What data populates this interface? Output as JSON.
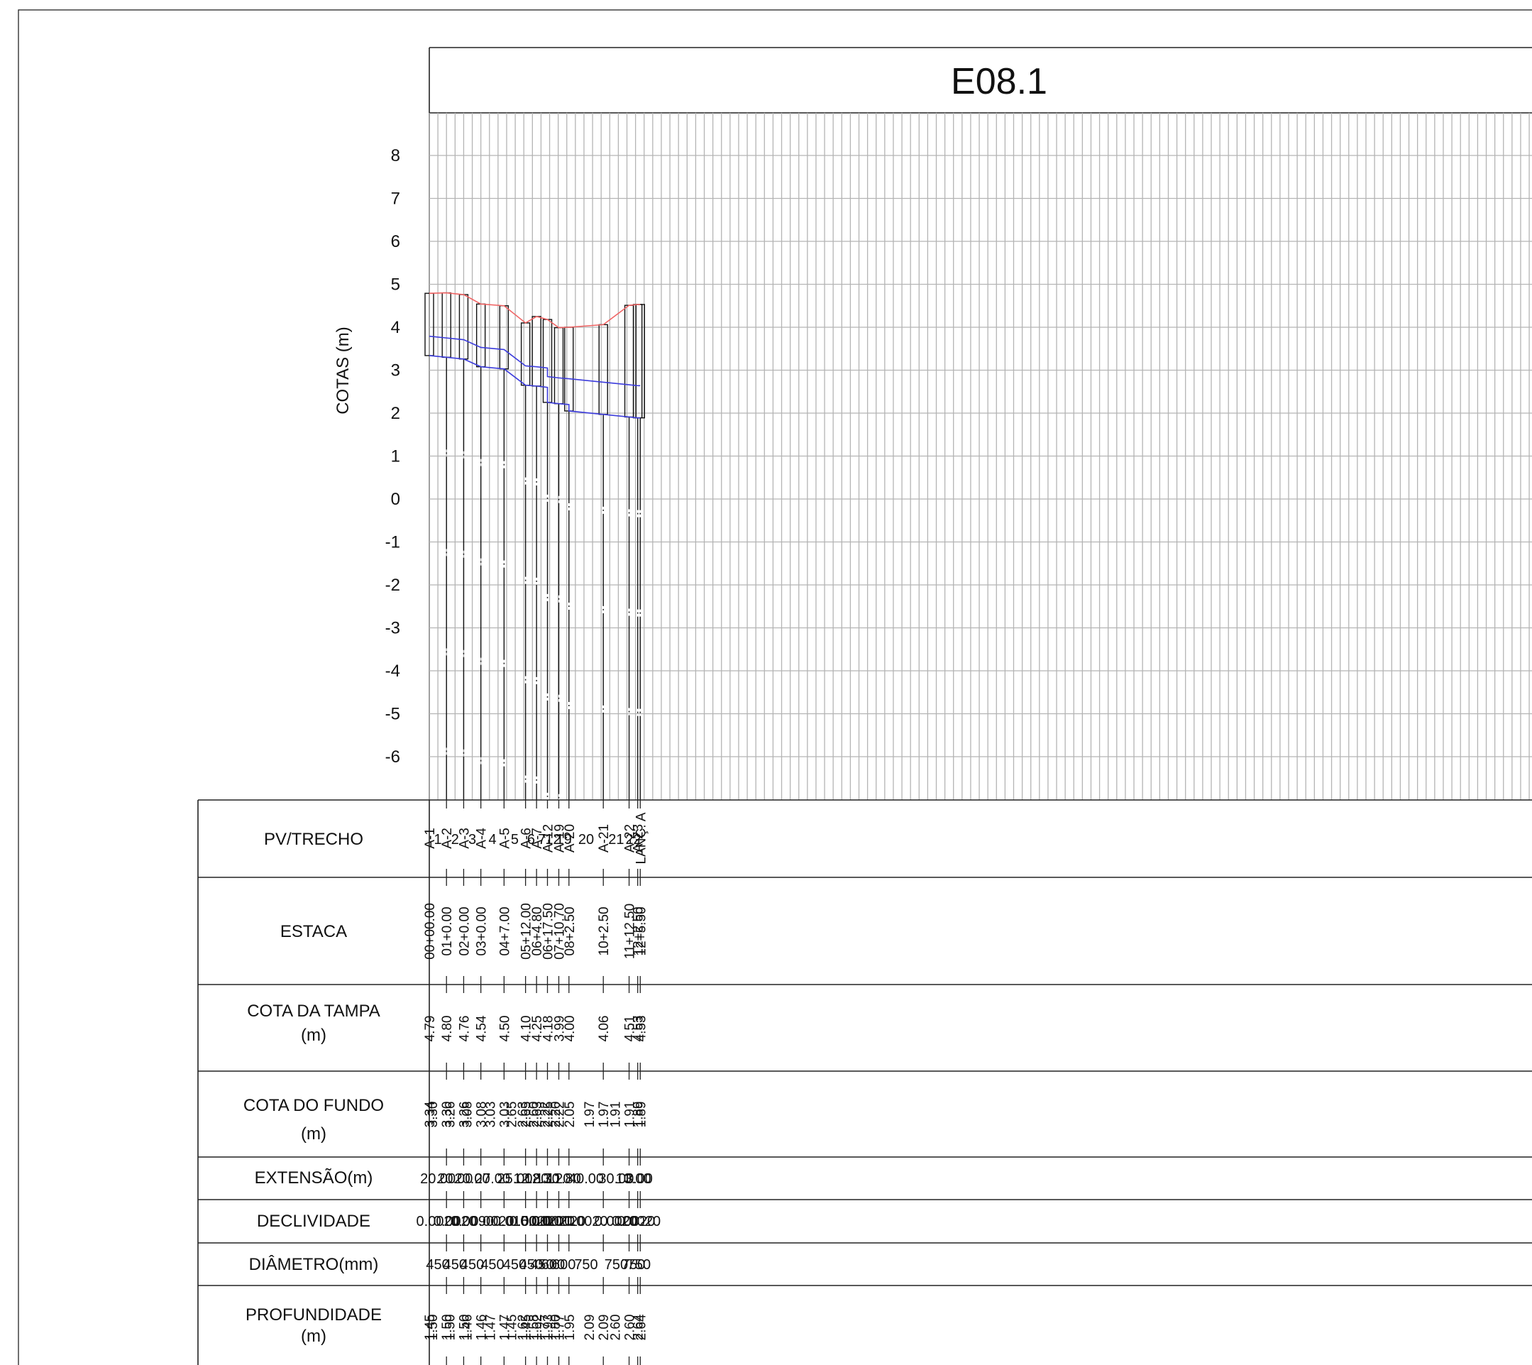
{
  "title": "E08.1",
  "y_axis_label": "COTAS (m)",
  "y_ticks": [
    "8",
    "7",
    "6",
    "5",
    "4",
    "3",
    "2",
    "1",
    "0",
    "-1",
    "-2",
    "-3",
    "-4",
    "-5",
    "-6"
  ],
  "row_labels": {
    "pv_trecho": "PV/TRECHO",
    "estaca": "ESTACA",
    "cota_tampa": [
      "COTA DA TAMPA",
      "(m)"
    ],
    "cota_fundo": [
      "COTA DO FUNDO",
      "(m)"
    ],
    "extensao": "EXTENSÃO(m)",
    "declividade": "DECLIVIDADE",
    "diametro": "DIÂMETRO(mm)",
    "profundidade": [
      "PROFUNDIDADE",
      "(m)"
    ]
  },
  "colors": {
    "terrain": "#f06464",
    "pipe": "#3c3cdc",
    "grid": "#b4b4b4"
  },
  "chart_data": {
    "type": "line",
    "ylabel": "COTAS (m)",
    "ylim": [
      -6,
      8
    ],
    "grid": true,
    "stations": [
      {
        "pv": "A-1",
        "estaca": "00+00.00",
        "chainage": 0,
        "tampa": [
          "4.79"
        ],
        "fundo": [
          "3.34"
        ],
        "prof": [
          "1.45"
        ]
      },
      {
        "pv": "A-2",
        "estaca": "01+0.00",
        "chainage": 20,
        "tampa": [
          "4.80"
        ],
        "fundo": [
          "3.30",
          "3.30"
        ],
        "prof": [
          "1.50",
          "1.50"
        ]
      },
      {
        "pv": "A-3",
        "estaca": "02+0.00",
        "chainage": 40,
        "tampa": [
          "4.76"
        ],
        "fundo": [
          "3.26",
          "3.26"
        ],
        "prof": [
          "1.50",
          "1.50"
        ]
      },
      {
        "pv": "A-4",
        "estaca": "03+0.00",
        "chainage": 60,
        "tampa": [
          "4.54"
        ],
        "fundo": [
          "3.08",
          "3.08"
        ],
        "prof": [
          "1.46",
          "1.46"
        ]
      },
      {
        "pv": "A-5",
        "estaca": "04+7.00",
        "chainage": 87,
        "tampa": [
          "4.50"
        ],
        "fundo": [
          "3.03",
          "3.03"
        ],
        "prof": [
          "1.47",
          "1.47"
        ]
      },
      {
        "pv": "A-6",
        "estaca": "05+12.00",
        "chainage": 112,
        "tampa": [
          "4.10"
        ],
        "fundo": [
          "2.65",
          "2.65"
        ],
        "prof": [
          "1.45",
          "1.45"
        ]
      },
      {
        "pv": "A-7",
        "estaca": "06+4.80",
        "chainage": 124.8,
        "tampa": [
          "4.25"
        ],
        "fundo": [
          "2.63",
          "2.63"
        ],
        "prof": [
          "1.62",
          "1.62"
        ]
      },
      {
        "pv": "A-12",
        "estaca": "06+17.50",
        "chainage": 137.5,
        "tampa": [
          "4.18"
        ],
        "fundo": [
          "2.60",
          "2.25"
        ],
        "prof": [
          "1.58",
          "1.93"
        ]
      },
      {
        "pv": "A-19",
        "estaca": "07+10.70",
        "chainage": 150.7,
        "tampa": [
          "3.99"
        ],
        "fundo": [
          "2.22",
          "2.22"
        ],
        "prof": [
          "1.77",
          "1.77"
        ]
      },
      {
        "pv": "A-20",
        "estaca": "08+2.50",
        "chainage": 162.5,
        "tampa": [
          "4.00"
        ],
        "fundo": [
          "2.20",
          "2.05"
        ],
        "prof": [
          "1.80",
          "1.95"
        ]
      },
      {
        "pv": "A-21",
        "estaca": "10+2.50",
        "chainage": 202.5,
        "tampa": [
          "4.06"
        ],
        "fundo": [
          "1.97",
          "1.97"
        ],
        "prof": [
          "2.09",
          "2.09"
        ]
      },
      {
        "pv": "A-22",
        "estaca": "11+12.50",
        "chainage": 232.5,
        "tampa": [
          "4.51"
        ],
        "fundo": [
          "1.91",
          "1.91"
        ],
        "prof": [
          "2.60",
          "2.60"
        ]
      },
      {
        "pv": "A-23",
        "estaca": "12+2.50",
        "chainage": 242.5,
        "tampa": [
          "4.53"
        ],
        "fundo": [
          "1.89"
        ],
        "prof": [
          "2.64"
        ]
      },
      {
        "pv": "LANÇ. A",
        "estaca": "12+5.50",
        "chainage": 245.5,
        "tampa": [
          "4.53"
        ],
        "fundo": [
          "1.89"
        ],
        "prof": [
          "2.64"
        ]
      }
    ],
    "segments": [
      {
        "trecho": "1",
        "extensao": "20.00",
        "declividade": "0.0020",
        "diametro": "450"
      },
      {
        "trecho": "2",
        "extensao": "20.00",
        "declividade": "0.0020",
        "diametro": "450"
      },
      {
        "trecho": "3",
        "extensao": "20.00",
        "declividade": "0.0090",
        "diametro": "450"
      },
      {
        "trecho": "4",
        "extensao": "27.00",
        "declividade": "0.0020",
        "diametro": "450"
      },
      {
        "trecho": "5",
        "extensao": "25.00",
        "declividade": "0.0150",
        "diametro": "450"
      },
      {
        "trecho": "6",
        "extensao": "12.80",
        "declividade": "0.0020",
        "diametro": "450"
      },
      {
        "trecho": "7",
        "extensao": "12.70",
        "declividade": "0.0020",
        "diametro": "450"
      },
      {
        "trecho": "12",
        "extensao": "13.20",
        "declividade": "0.0020",
        "diametro": "600"
      },
      {
        "trecho": "19",
        "extensao": "11.80",
        "declividade": "0.0020",
        "diametro": "600"
      },
      {
        "trecho": "20",
        "extensao": "40.00",
        "declividade": "0.0020",
        "diametro": "750"
      },
      {
        "trecho": "21",
        "extensao": "30.00",
        "declividade": "0.0020",
        "diametro": "750"
      },
      {
        "trecho": "22",
        "extensao": "10.00",
        "declividade": "0.0020",
        "diametro": "750"
      },
      {
        "trecho": "",
        "extensao": "3.00",
        "declividade": "0.0020",
        "diametro": "750"
      }
    ]
  }
}
